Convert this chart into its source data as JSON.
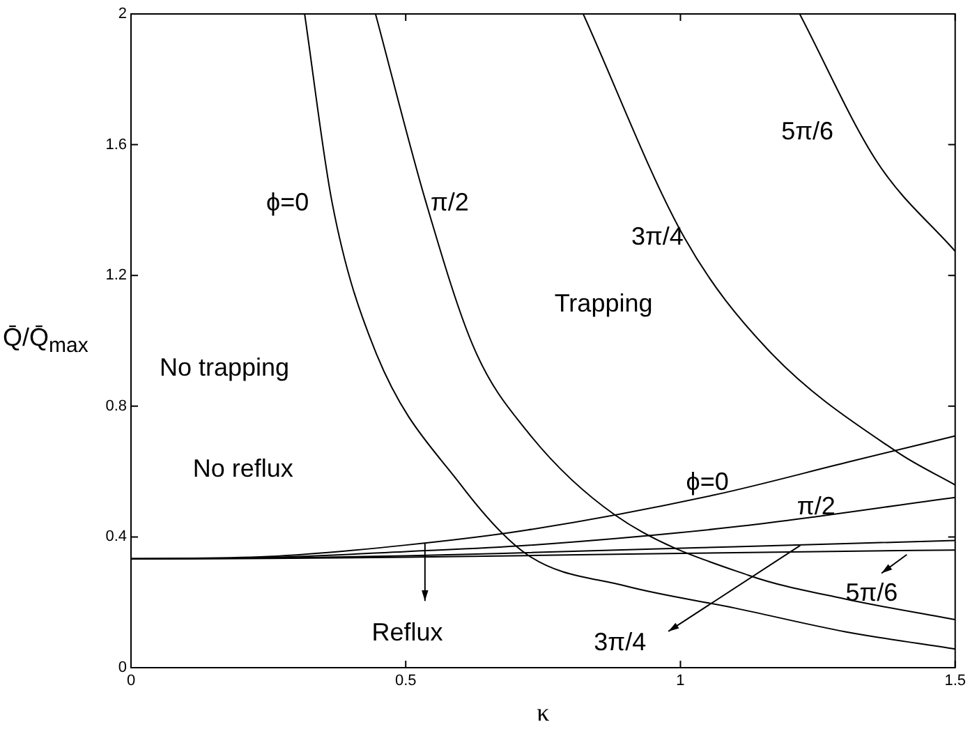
{
  "chart_data": {
    "type": "line",
    "xlabel": "κ",
    "ylabel": "Q̄/Q̄$_{max}$",
    "xlim": [
      0,
      1.5
    ],
    "ylim": [
      0,
      2
    ],
    "xticks": [
      0,
      0.5,
      1,
      1.5
    ],
    "yticks": [
      0,
      0.4,
      0.8,
      1.2,
      1.6,
      2
    ],
    "grid": false,
    "legend": false,
    "marker": "none",
    "line_style": "solid",
    "series": [
      {
        "color": "#000000",
        "x": [
          0.316,
          0.366,
          0.443,
          0.6,
          0.721,
          0.9,
          1.1,
          1.3,
          1.5
        ],
        "values": [
          2,
          1.423,
          0.975,
          0.56,
          0.346,
          0.25,
          0.182,
          0.11,
          0.057
        ]
      },
      {
        "color": "#000000",
        "x": [
          0.445,
          0.537,
          0.625,
          0.721,
          0.881,
          1.125,
          1.3,
          1.5
        ],
        "values": [
          2,
          1.423,
          0.975,
          0.723,
          0.467,
          0.282,
          0.21,
          0.147
        ]
      },
      {
        "color": "#000000",
        "x": [
          0.823,
          1.007,
          1.158,
          1.395,
          1.5
        ],
        "values": [
          2,
          1.316,
          0.975,
          0.659,
          0.559
        ]
      },
      {
        "color": "#000000",
        "x": [
          1.217,
          1.358,
          1.5
        ],
        "values": [
          2,
          1.547,
          1.274
        ]
      },
      {
        "color": "#000000",
        "x": [
          0,
          0.25,
          0.5,
          0.721,
          1.058,
          1.31,
          1.5
        ],
        "values": [
          0.333,
          0.34,
          0.375,
          0.421,
          0.527,
          0.631,
          0.709
        ]
      },
      {
        "color": "#000000",
        "x": [
          0,
          0.25,
          0.5,
          0.721,
          1.1,
          1.5
        ],
        "values": [
          0.333,
          0.337,
          0.355,
          0.374,
          0.431,
          0.521
        ]
      },
      {
        "color": "#000000",
        "x": [
          0,
          0.25,
          0.5,
          0.721,
          1.1,
          1.5
        ],
        "values": [
          0.333,
          0.335,
          0.342,
          0.352,
          0.37,
          0.389
        ]
      },
      {
        "color": "#000000",
        "x": [
          0,
          0.25,
          0.5,
          0.721,
          1.1,
          1.5
        ],
        "values": [
          0.333,
          0.334,
          0.338,
          0.343,
          0.352,
          0.36
        ]
      }
    ],
    "annotations": [
      "ϕ=0",
      "π/2",
      "3π/4",
      "5π/6",
      "Trapping",
      "No trapping",
      "No reflux",
      "Reflux",
      "ϕ=0",
      "π/2",
      "5π/6",
      "3π/4"
    ]
  }
}
